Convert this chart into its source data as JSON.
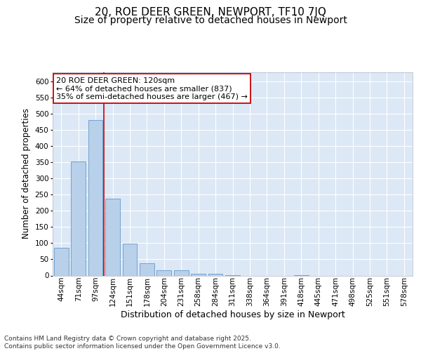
{
  "title": "20, ROE DEER GREEN, NEWPORT, TF10 7JQ",
  "subtitle": "Size of property relative to detached houses in Newport",
  "xlabel": "Distribution of detached houses by size in Newport",
  "ylabel": "Number of detached properties",
  "categories": [
    "44sqm",
    "71sqm",
    "97sqm",
    "124sqm",
    "151sqm",
    "178sqm",
    "204sqm",
    "231sqm",
    "258sqm",
    "284sqm",
    "311sqm",
    "338sqm",
    "364sqm",
    "391sqm",
    "418sqm",
    "445sqm",
    "471sqm",
    "498sqm",
    "525sqm",
    "551sqm",
    "578sqm"
  ],
  "values": [
    86,
    352,
    481,
    237,
    98,
    37,
    16,
    16,
    6,
    5,
    1,
    0,
    0,
    0,
    1,
    0,
    0,
    0,
    0,
    0,
    0
  ],
  "bar_color": "#b8d0ea",
  "bar_edge_color": "#6699cc",
  "plot_bg_color": "#dce8f5",
  "fig_bg_color": "#ffffff",
  "grid_color": "#ffffff",
  "vline_x": 2.5,
  "vline_color": "#cc0000",
  "annotation_text": "20 ROE DEER GREEN: 120sqm\n← 64% of detached houses are smaller (837)\n35% of semi-detached houses are larger (467) →",
  "annotation_box_facecolor": "#ffffff",
  "annotation_box_edgecolor": "#cc0000",
  "ylim": [
    0,
    630
  ],
  "yticks": [
    0,
    50,
    100,
    150,
    200,
    250,
    300,
    350,
    400,
    450,
    500,
    550,
    600
  ],
  "footer_text": "Contains HM Land Registry data © Crown copyright and database right 2025.\nContains public sector information licensed under the Open Government Licence v3.0.",
  "title_fontsize": 11,
  "subtitle_fontsize": 10,
  "xlabel_fontsize": 9,
  "ylabel_fontsize": 8.5,
  "tick_fontsize": 7.5,
  "annotation_fontsize": 8,
  "footer_fontsize": 6.5
}
